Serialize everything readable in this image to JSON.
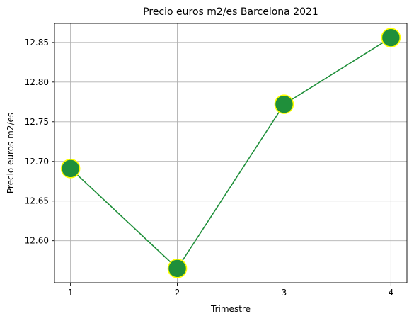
{
  "chart_data": {
    "type": "line",
    "title": "Precio euros m2/es Barcelona 2021",
    "xlabel": "Trimestre",
    "ylabel": "Precio euros m2/es",
    "x": [
      1,
      2,
      3,
      4
    ],
    "x_tick_labels": [
      "1",
      "2",
      "3",
      "4"
    ],
    "series": [
      {
        "values": [
          12.691,
          12.565,
          12.772,
          12.856
        ]
      }
    ],
    "xlim": [
      0.85,
      4.15
    ],
    "ylim": [
      12.547,
      12.874
    ],
    "y_ticks": [
      12.6,
      12.65,
      12.7,
      12.75,
      12.8,
      12.85
    ],
    "y_tick_labels": [
      "12.60",
      "12.65",
      "12.70",
      "12.75",
      "12.80",
      "12.85"
    ],
    "grid": true,
    "colors": {
      "line": "#1f8f3a",
      "marker_fill": "#1f8f3a",
      "marker_edge": "#ffff00",
      "grid": "#b0b0b0"
    }
  }
}
